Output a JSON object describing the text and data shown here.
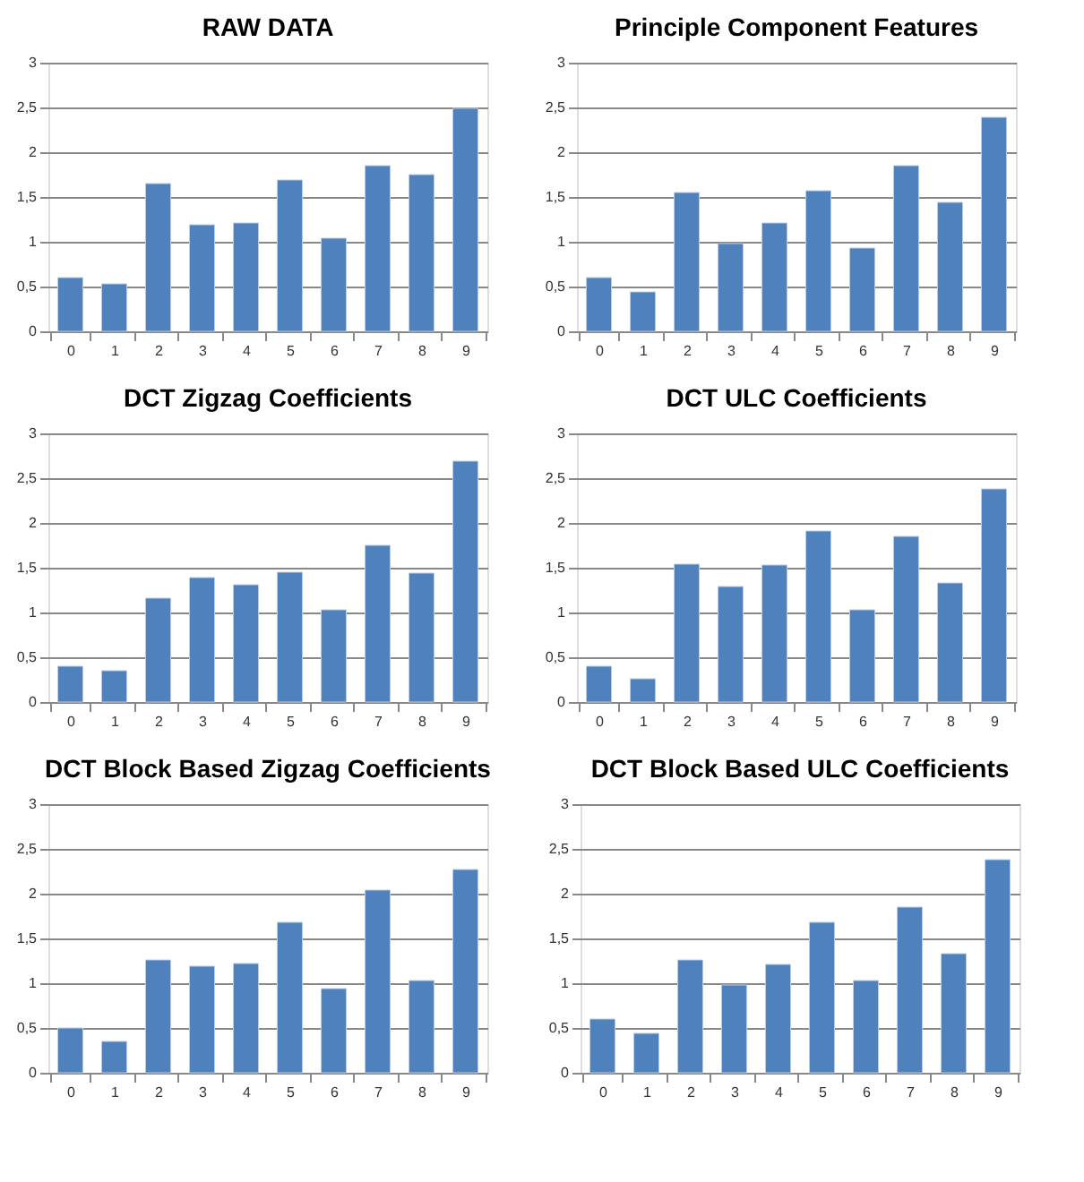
{
  "chart_data": [
    {
      "type": "bar",
      "title": "RAW DATA",
      "categories": [
        "0",
        "1",
        "2",
        "3",
        "4",
        "5",
        "6",
        "7",
        "8",
        "9"
      ],
      "values": [
        0.6,
        0.53,
        1.65,
        1.19,
        1.21,
        1.69,
        1.04,
        1.85,
        1.75,
        2.49
      ],
      "color": "#4f81bd",
      "ylim": [
        0,
        3
      ],
      "yticks": [
        0,
        {
          "value": 0.5,
          "label": "0,5"
        },
        1,
        {
          "value": 1.5,
          "label": "1,5"
        },
        2,
        {
          "value": 2.5,
          "label": "2,5"
        },
        3
      ],
      "grid": "y"
    },
    {
      "type": "bar",
      "title": "Principle Component Features",
      "categories": [
        "0",
        "1",
        "2",
        "3",
        "4",
        "5",
        "6",
        "7",
        "8",
        "9"
      ],
      "values": [
        0.6,
        0.44,
        1.55,
        0.98,
        1.21,
        1.57,
        0.93,
        1.85,
        1.44,
        2.39
      ],
      "color": "#4f81bd",
      "ylim": [
        0,
        3
      ],
      "yticks": [
        0,
        {
          "value": 0.5,
          "label": "0,5"
        },
        1,
        {
          "value": 1.5,
          "label": "1,5"
        },
        2,
        {
          "value": 2.5,
          "label": "2,5"
        },
        3
      ],
      "grid": "y"
    },
    {
      "type": "bar",
      "title": "DCT Zigzag Coefficients",
      "categories": [
        "0",
        "1",
        "2",
        "3",
        "4",
        "5",
        "6",
        "7",
        "8",
        "9"
      ],
      "values": [
        0.4,
        0.35,
        1.16,
        1.39,
        1.31,
        1.45,
        1.03,
        1.75,
        1.44,
        2.69
      ],
      "color": "#4f81bd",
      "ylim": [
        0,
        3
      ],
      "yticks": [
        0,
        {
          "value": 0.5,
          "label": "0,5"
        },
        1,
        {
          "value": 1.5,
          "label": "1,5"
        },
        2,
        {
          "value": 2.5,
          "label": "2,5"
        },
        3
      ],
      "grid": "y"
    },
    {
      "type": "bar",
      "title": "DCT ULC Coefficients",
      "categories": [
        "0",
        "1",
        "2",
        "3",
        "4",
        "5",
        "6",
        "7",
        "8",
        "9"
      ],
      "values": [
        0.4,
        0.26,
        1.54,
        1.29,
        1.53,
        1.91,
        1.03,
        1.85,
        1.33,
        2.38
      ],
      "color": "#4f81bd",
      "ylim": [
        0,
        3
      ],
      "yticks": [
        0,
        {
          "value": 0.5,
          "label": "0,5"
        },
        1,
        {
          "value": 1.5,
          "label": "1,5"
        },
        2,
        {
          "value": 2.5,
          "label": "2,5"
        },
        3
      ],
      "grid": "y"
    },
    {
      "type": "bar",
      "title": "DCT Block Based Zigzag Coefficients",
      "categories": [
        "0",
        "1",
        "2",
        "3",
        "4",
        "5",
        "6",
        "7",
        "8",
        "9"
      ],
      "values": [
        0.5,
        0.35,
        1.26,
        1.19,
        1.22,
        1.68,
        0.94,
        2.04,
        1.03,
        2.27
      ],
      "color": "#4f81bd",
      "ylim": [
        0,
        3
      ],
      "yticks": [
        0,
        {
          "value": 0.5,
          "label": "0,5"
        },
        1,
        {
          "value": 1.5,
          "label": "1,5"
        },
        2,
        {
          "value": 2.5,
          "label": "2,5"
        },
        3
      ],
      "grid": "y"
    },
    {
      "type": "bar",
      "title": "DCT Block Based ULC Coefficients",
      "categories": [
        "0",
        "1",
        "2",
        "3",
        "4",
        "5",
        "6",
        "7",
        "8",
        "9"
      ],
      "values": [
        0.6,
        0.44,
        1.26,
        0.98,
        1.21,
        1.68,
        1.03,
        1.85,
        1.33,
        2.38
      ],
      "color": "#4f81bd",
      "ylim": [
        0,
        3
      ],
      "yticks": [
        0,
        {
          "value": 0.5,
          "label": "0,5"
        },
        1,
        {
          "value": 1.5,
          "label": "1,5"
        },
        2,
        {
          "value": 2.5,
          "label": "2,5"
        },
        3
      ],
      "grid": "y"
    }
  ]
}
